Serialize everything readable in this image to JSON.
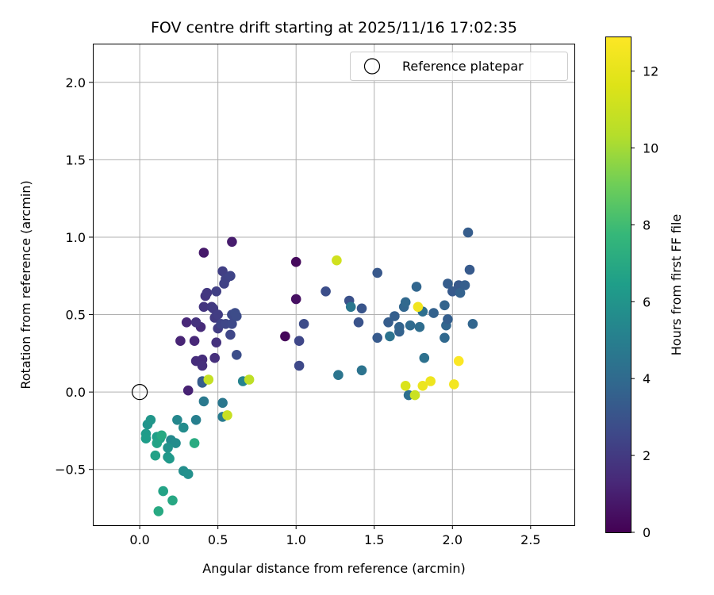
{
  "chart_data": {
    "type": "scatter",
    "title": "FOV centre drift starting at 2025/11/16 17:02:35",
    "xlabel": "Angular distance from reference (arcmin)",
    "ylabel": "Rotation from reference (arcmin)",
    "xlim": [
      -0.3,
      2.78
    ],
    "ylim": [
      -0.86,
      2.25
    ],
    "xticks": [
      0.0,
      0.5,
      1.0,
      1.5,
      2.0,
      2.5
    ],
    "xtick_labels": [
      "0.0",
      "0.5",
      "1.0",
      "1.5",
      "2.0",
      "2.5"
    ],
    "yticks": [
      -0.5,
      0.0,
      0.5,
      1.0,
      1.5,
      2.0
    ],
    "ytick_labels": [
      "−0.5",
      "0.0",
      "0.5",
      "1.0",
      "1.5",
      "2.0"
    ],
    "grid": true,
    "legend": {
      "position": "top-right",
      "entries": [
        "Reference platepar"
      ]
    },
    "reference_point": {
      "x": 0.0,
      "y": 0.0,
      "label": "Reference platepar"
    },
    "colorbar": {
      "label": "Hours from first FF file",
      "colormap": "viridis",
      "min": 0,
      "max": 12.9,
      "ticks": [
        0,
        2,
        4,
        6,
        8,
        10,
        12
      ],
      "tick_labels": [
        "0",
        "2",
        "4",
        "6",
        "8",
        "10",
        "12"
      ]
    },
    "points": [
      [
        0.41,
        0.9,
        0.8
      ],
      [
        0.59,
        0.97,
        0.9
      ],
      [
        0.93,
        0.36,
        0.2
      ],
      [
        1.0,
        0.84,
        0.3
      ],
      [
        1.0,
        0.6,
        0.5
      ],
      [
        0.31,
        0.01,
        1.1
      ],
      [
        0.26,
        0.33,
        1.2
      ],
      [
        0.35,
        0.33,
        1.3
      ],
      [
        0.3,
        0.45,
        1.3
      ],
      [
        0.39,
        0.42,
        1.4
      ],
      [
        0.36,
        0.2,
        1.5
      ],
      [
        0.4,
        0.21,
        1.5
      ],
      [
        0.4,
        0.17,
        1.6
      ],
      [
        0.48,
        0.22,
        1.6
      ],
      [
        0.49,
        0.32,
        1.7
      ],
      [
        0.36,
        0.45,
        1.7
      ],
      [
        0.41,
        0.55,
        1.8
      ],
      [
        0.42,
        0.62,
        1.8
      ],
      [
        0.43,
        0.64,
        1.9
      ],
      [
        0.46,
        0.55,
        1.9
      ],
      [
        0.47,
        0.54,
        2.0
      ],
      [
        0.48,
        0.48,
        2.0
      ],
      [
        0.5,
        0.5,
        2.1
      ],
      [
        0.5,
        0.41,
        2.1
      ],
      [
        0.49,
        0.65,
        2.2
      ],
      [
        0.53,
        0.78,
        2.2
      ],
      [
        0.54,
        0.7,
        2.3
      ],
      [
        0.55,
        0.73,
        2.3
      ],
      [
        0.58,
        0.75,
        2.4
      ],
      [
        0.52,
        0.44,
        2.4
      ],
      [
        0.55,
        0.44,
        2.5
      ],
      [
        0.58,
        0.37,
        2.5
      ],
      [
        0.59,
        0.44,
        2.6
      ],
      [
        0.59,
        0.5,
        2.6
      ],
      [
        0.61,
        0.51,
        2.7
      ],
      [
        0.62,
        0.49,
        2.7
      ],
      [
        0.62,
        0.24,
        2.8
      ],
      [
        0.4,
        0.07,
        3.2
      ],
      [
        0.4,
        0.06,
        3.4
      ],
      [
        1.02,
        0.33,
        2.5
      ],
      [
        1.02,
        0.17,
        2.6
      ],
      [
        1.05,
        0.44,
        2.7
      ],
      [
        1.19,
        0.65,
        2.8
      ],
      [
        1.34,
        0.59,
        2.9
      ],
      [
        1.4,
        0.45,
        3.0
      ],
      [
        1.42,
        0.54,
        3.1
      ],
      [
        1.52,
        0.77,
        3.2
      ],
      [
        1.52,
        0.35,
        3.3
      ],
      [
        1.59,
        0.45,
        3.4
      ],
      [
        1.63,
        0.49,
        3.5
      ],
      [
        1.66,
        0.39,
        3.6
      ],
      [
        1.66,
        0.42,
        3.7
      ],
      [
        1.69,
        0.55,
        3.8
      ],
      [
        1.7,
        0.58,
        3.9
      ],
      [
        1.73,
        0.43,
        4.0
      ],
      [
        1.77,
        0.68,
        3.8
      ],
      [
        1.79,
        0.42,
        4.1
      ],
      [
        1.81,
        0.52,
        4.2
      ],
      [
        1.82,
        0.22,
        4.3
      ],
      [
        1.88,
        0.51,
        3.6
      ],
      [
        1.95,
        0.56,
        3.7
      ],
      [
        1.96,
        0.43,
        3.8
      ],
      [
        1.97,
        0.47,
        3.5
      ],
      [
        1.97,
        0.7,
        3.4
      ],
      [
        2.0,
        0.65,
        3.3
      ],
      [
        2.04,
        0.69,
        3.2
      ],
      [
        2.05,
        0.64,
        3.6
      ],
      [
        2.08,
        0.69,
        3.5
      ],
      [
        2.1,
        1.03,
        3.4
      ],
      [
        2.11,
        0.79,
        3.3
      ],
      [
        2.13,
        0.44,
        3.8
      ],
      [
        1.95,
        0.35,
        3.9
      ],
      [
        1.72,
        -0.02,
        4.2
      ],
      [
        1.42,
        0.14,
        4.4
      ],
      [
        1.27,
        0.11,
        4.5
      ],
      [
        1.35,
        0.55,
        4.6
      ],
      [
        1.6,
        0.36,
        4.4
      ],
      [
        0.41,
        -0.06,
        4.7
      ],
      [
        0.53,
        -0.07,
        4.6
      ],
      [
        0.53,
        -0.16,
        4.8
      ],
      [
        0.36,
        -0.18,
        5.0
      ],
      [
        0.24,
        -0.18,
        5.4
      ],
      [
        0.28,
        -0.23,
        5.6
      ],
      [
        0.2,
        -0.31,
        5.5
      ],
      [
        0.23,
        -0.33,
        5.6
      ],
      [
        0.28,
        -0.51,
        5.7
      ],
      [
        0.31,
        -0.53,
        5.8
      ],
      [
        0.18,
        -0.36,
        5.9
      ],
      [
        0.18,
        -0.42,
        6.1
      ],
      [
        0.19,
        -0.43,
        6.2
      ],
      [
        0.05,
        -0.21,
        6.0
      ],
      [
        0.07,
        -0.18,
        6.1
      ],
      [
        0.04,
        -0.27,
        6.3
      ],
      [
        0.04,
        -0.3,
        6.4
      ],
      [
        0.11,
        -0.29,
        6.5
      ],
      [
        0.13,
        -0.3,
        6.6
      ],
      [
        0.11,
        -0.33,
        6.7
      ],
      [
        0.1,
        -0.41,
        6.6
      ],
      [
        0.15,
        -0.64,
        6.7
      ],
      [
        0.21,
        -0.7,
        6.9
      ],
      [
        0.12,
        -0.77,
        7.0
      ],
      [
        0.35,
        -0.33,
        7.1
      ],
      [
        0.14,
        -0.28,
        7.0
      ],
      [
        0.66,
        0.07,
        5.2
      ],
      [
        0.44,
        0.08,
        10.8
      ],
      [
        0.7,
        0.08,
        10.6
      ],
      [
        0.56,
        -0.15,
        10.9
      ],
      [
        1.26,
        0.85,
        11.2
      ],
      [
        1.7,
        0.04,
        11.5
      ],
      [
        1.76,
        -0.02,
        11.0
      ],
      [
        1.78,
        0.55,
        12.4
      ],
      [
        1.81,
        0.04,
        12.2
      ],
      [
        1.86,
        0.07,
        12.3
      ],
      [
        2.01,
        0.05,
        12.5
      ],
      [
        2.04,
        0.2,
        12.8
      ]
    ]
  }
}
